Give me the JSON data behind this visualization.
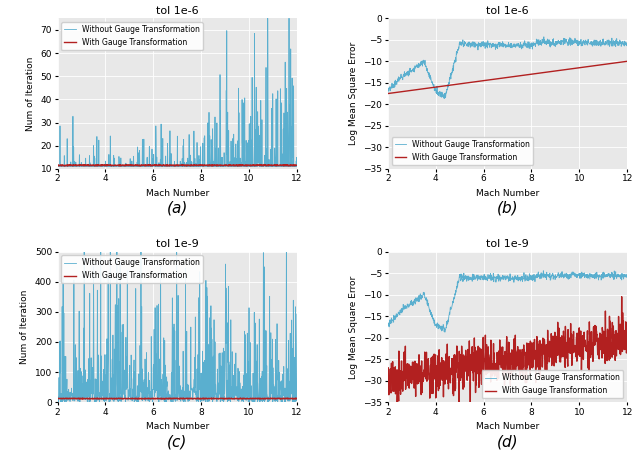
{
  "title_a": "tol 1e-6",
  "title_b": "tol 1e-6",
  "title_c": "tol 1e-9",
  "title_d": "tol 1e-9",
  "xlabel": "Mach Number",
  "ylabel_iter": "Num of Iteration",
  "ylabel_err": "Log Mean Square Error",
  "label_without": "Without Gauge Transformation",
  "label_with": "With Gauge Transformation",
  "color_without": "#5aafcf",
  "color_with": "#b22020",
  "caption_a": "(a)",
  "caption_b": "(b)",
  "caption_c": "(c)",
  "caption_d": "(d)",
  "bg_color": "#e8e8e8",
  "xlim": [
    2,
    12
  ],
  "ylim_a": [
    10,
    75
  ],
  "ylim_b": [
    -35,
    0
  ],
  "ylim_c": [
    0,
    500
  ],
  "ylim_d": [
    -35,
    0
  ],
  "mach_min": 2.0,
  "mach_max": 12.0,
  "n_points": 1000
}
